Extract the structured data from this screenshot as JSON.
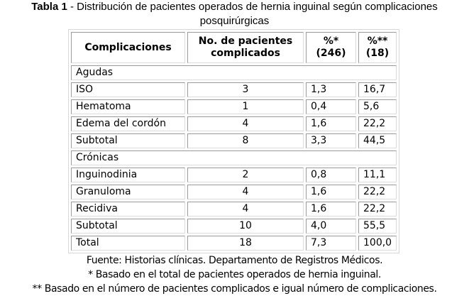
{
  "title": {
    "label": "Tabla 1",
    "text": " - Distribución de pacientes operados de hernia inguinal según complicaciones",
    "line2": "posquirúrgicas"
  },
  "table": {
    "headers": [
      "Complicaciones",
      "No. de pacientes complicados",
      "%* (246)",
      "%** (18)"
    ],
    "groups": [
      {
        "label": "Agudas",
        "rows": [
          [
            "ISO",
            "3",
            "1,3",
            "16,7"
          ],
          [
            "Hematoma",
            "1",
            "0,4",
            "5,6"
          ],
          [
            "Edema del cordón",
            "4",
            "1,6",
            "22,2"
          ],
          [
            "Subtotal",
            "8",
            "3,3",
            "44,5"
          ]
        ]
      },
      {
        "label": "Crónicas",
        "rows": [
          [
            "Inguinodinia",
            "2",
            "0,8",
            "11,1"
          ],
          [
            "Granuloma",
            "4",
            "1,6",
            "22,2"
          ],
          [
            "Recidiva",
            "4",
            "1,6",
            "22,2"
          ],
          [
            "Subtotal",
            "10",
            "4,0",
            "55,5"
          ]
        ]
      }
    ],
    "total": [
      "Total",
      "18",
      "7,3",
      "100,0"
    ]
  },
  "footnotes": [
    "Fuente: Historias clínicas. Departamento de Registros Médicos.",
    "* Basado en el total de pacientes operados de hernia inguinal.",
    "** Basado en el número de pacientes complicados e igual número de complicaciones."
  ]
}
